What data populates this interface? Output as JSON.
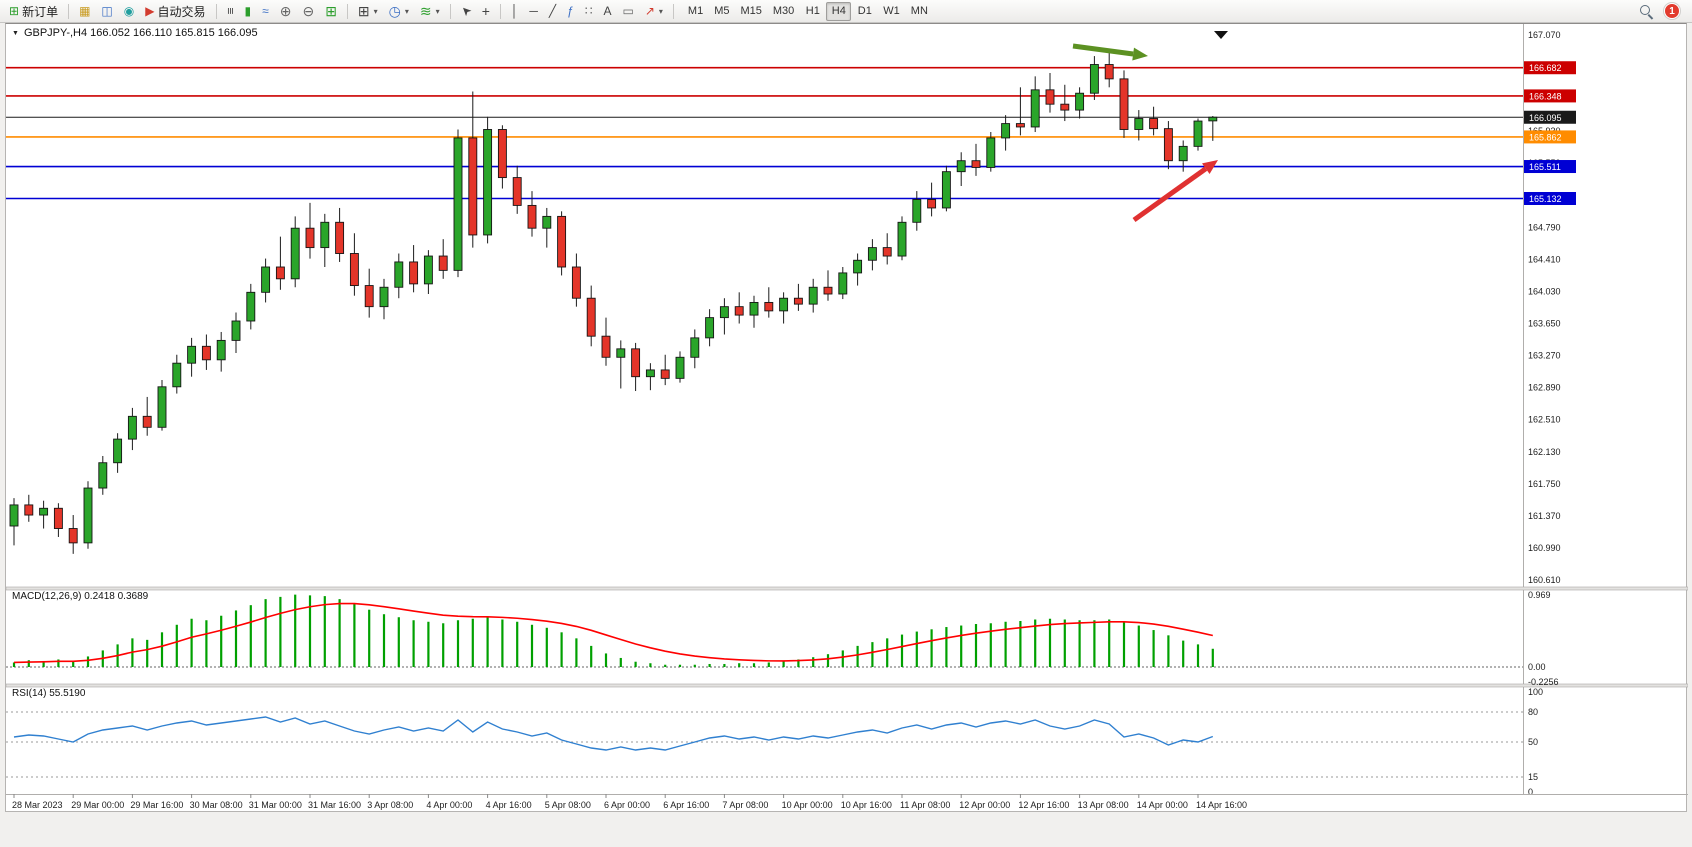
{
  "toolbar": {
    "new_order_label": "新订单",
    "auto_trading_label": "自动交易",
    "timeframes": [
      "M1",
      "M5",
      "M15",
      "M30",
      "H1",
      "H4",
      "D1",
      "W1",
      "MN"
    ],
    "active_timeframe": "H4",
    "notification_count": "1",
    "icons": {
      "new_order": "⊞",
      "market_watch": "▦",
      "data_window": "◫",
      "navigator": "◉",
      "auto_trading": "▶",
      "bar_chart": "≡",
      "candlestick_chart": "▮",
      "line_chart": "≈",
      "zoom_in": "⊕",
      "zoom_out": "⊖",
      "tile_windows": "⊞",
      "new_chart": "⊞",
      "periods": "◷",
      "indicators": "≋",
      "cursor": "➤",
      "crosshair": "+",
      "vertical_line": "│",
      "horizontal_line": "─",
      "trendline": "╱",
      "fibonacci": "ƒ",
      "channel": "∷",
      "text": "A",
      "text_label": "▭",
      "arrows": "↗",
      "dropdown": "▾",
      "chart_dropdown": "▼"
    }
  },
  "chart": {
    "title": "GBPJPY-,H4 166.052 166.110 165.815 166.095"
  },
  "chart_data": {
    "type": "candlestick",
    "symbol": "GBPJPY-",
    "timeframe": "H4",
    "ohlc_header": {
      "open": "166.052",
      "high": "166.110",
      "low": "165.815",
      "close": "166.095"
    },
    "y_axis_ticks": [
      "167.070",
      "166.690",
      "166.310",
      "165.930",
      "165.550",
      "165.170",
      "164.790",
      "164.410",
      "164.030",
      "163.650",
      "163.270",
      "162.890",
      "162.510",
      "162.130",
      "161.750",
      "161.370",
      "160.990",
      "160.610"
    ],
    "price_lines": [
      {
        "price": 166.682,
        "label": "166.682",
        "color": "#cc0000",
        "width": 1.6
      },
      {
        "price": 166.348,
        "label": "166.348",
        "color": "#cc0000",
        "width": 1.6
      },
      {
        "price": 166.095,
        "label": "166.095",
        "color": "#1a1a1a",
        "width": 1
      },
      {
        "price": 165.862,
        "label": "165.862",
        "color": "#ff8c00",
        "width": 1.6
      },
      {
        "price": 165.511,
        "label": "165.511",
        "color": "#0000d4",
        "width": 1.6
      },
      {
        "price": 165.132,
        "label": "165.132",
        "color": "#0000d4",
        "width": 1.6
      }
    ],
    "candles": [
      [
        161.25,
        161.58,
        161.02,
        161.5
      ],
      [
        161.5,
        161.62,
        161.3,
        161.38
      ],
      [
        161.38,
        161.55,
        161.22,
        161.46
      ],
      [
        161.46,
        161.52,
        161.12,
        161.22
      ],
      [
        161.22,
        161.38,
        160.92,
        161.05
      ],
      [
        161.05,
        161.78,
        160.98,
        161.7
      ],
      [
        161.7,
        162.08,
        161.62,
        162.0
      ],
      [
        162.0,
        162.35,
        161.88,
        162.28
      ],
      [
        162.28,
        162.65,
        162.15,
        162.55
      ],
      [
        162.55,
        162.78,
        162.32,
        162.42
      ],
      [
        162.42,
        162.98,
        162.38,
        162.9
      ],
      [
        162.9,
        163.28,
        162.82,
        163.18
      ],
      [
        163.18,
        163.48,
        163.02,
        163.38
      ],
      [
        163.38,
        163.52,
        163.1,
        163.22
      ],
      [
        163.22,
        163.55,
        163.08,
        163.45
      ],
      [
        163.45,
        163.78,
        163.3,
        163.68
      ],
      [
        163.68,
        164.12,
        163.58,
        164.02
      ],
      [
        164.02,
        164.42,
        163.9,
        164.32
      ],
      [
        164.32,
        164.68,
        164.05,
        164.18
      ],
      [
        164.18,
        164.92,
        164.08,
        164.78
      ],
      [
        164.78,
        165.08,
        164.42,
        164.55
      ],
      [
        164.55,
        164.95,
        164.32,
        164.85
      ],
      [
        164.85,
        165.02,
        164.38,
        164.48
      ],
      [
        164.48,
        164.72,
        163.98,
        164.1
      ],
      [
        164.1,
        164.3,
        163.72,
        163.85
      ],
      [
        163.85,
        164.18,
        163.7,
        164.08
      ],
      [
        164.08,
        164.48,
        163.95,
        164.38
      ],
      [
        164.38,
        164.58,
        164.02,
        164.12
      ],
      [
        164.12,
        164.52,
        164.0,
        164.45
      ],
      [
        164.45,
        164.65,
        164.18,
        164.28
      ],
      [
        164.28,
        165.95,
        164.2,
        165.85
      ],
      [
        165.85,
        166.4,
        164.55,
        164.7
      ],
      [
        164.7,
        166.1,
        164.6,
        165.95
      ],
      [
        165.95,
        166.0,
        165.25,
        165.38
      ],
      [
        165.38,
        165.52,
        164.95,
        165.05
      ],
      [
        165.05,
        165.22,
        164.68,
        164.78
      ],
      [
        164.78,
        165.02,
        164.55,
        164.92
      ],
      [
        164.92,
        164.98,
        164.22,
        164.32
      ],
      [
        164.32,
        164.48,
        163.85,
        163.95
      ],
      [
        163.95,
        164.1,
        163.38,
        163.5
      ],
      [
        163.5,
        163.72,
        163.15,
        163.25
      ],
      [
        163.25,
        163.45,
        162.88,
        163.35
      ],
      [
        163.35,
        163.42,
        162.85,
        163.02
      ],
      [
        163.02,
        163.18,
        162.86,
        163.1
      ],
      [
        163.1,
        163.28,
        162.92,
        163.0
      ],
      [
        163.0,
        163.32,
        162.95,
        163.25
      ],
      [
        163.25,
        163.58,
        163.12,
        163.48
      ],
      [
        163.48,
        163.82,
        163.38,
        163.72
      ],
      [
        163.72,
        163.95,
        163.52,
        163.85
      ],
      [
        163.85,
        164.02,
        163.65,
        163.75
      ],
      [
        163.75,
        163.98,
        163.6,
        163.9
      ],
      [
        163.9,
        164.08,
        163.72,
        163.8
      ],
      [
        163.8,
        164.02,
        163.65,
        163.95
      ],
      [
        163.95,
        164.12,
        163.8,
        163.88
      ],
      [
        163.88,
        164.18,
        163.78,
        164.08
      ],
      [
        164.08,
        164.28,
        163.92,
        164.0
      ],
      [
        164.0,
        164.32,
        163.94,
        164.25
      ],
      [
        164.25,
        164.48,
        164.1,
        164.4
      ],
      [
        164.4,
        164.65,
        164.28,
        164.55
      ],
      [
        164.55,
        164.72,
        164.35,
        164.45
      ],
      [
        164.45,
        164.92,
        164.4,
        164.85
      ],
      [
        164.85,
        165.22,
        164.75,
        165.12
      ],
      [
        165.12,
        165.32,
        164.92,
        165.02
      ],
      [
        165.02,
        165.52,
        164.98,
        165.45
      ],
      [
        165.45,
        165.68,
        165.28,
        165.58
      ],
      [
        165.58,
        165.78,
        165.4,
        165.5
      ],
      [
        165.5,
        165.92,
        165.45,
        165.85
      ],
      [
        165.85,
        166.12,
        165.7,
        166.02
      ],
      [
        166.02,
        166.45,
        165.88,
        165.98
      ],
      [
        165.98,
        166.58,
        165.92,
        166.42
      ],
      [
        166.42,
        166.62,
        166.15,
        166.25
      ],
      [
        166.25,
        166.48,
        166.05,
        166.18
      ],
      [
        166.18,
        166.45,
        166.08,
        166.38
      ],
      [
        166.38,
        166.82,
        166.3,
        166.72
      ],
      [
        166.72,
        166.86,
        166.45,
        166.55
      ],
      [
        166.55,
        166.65,
        165.85,
        165.95
      ],
      [
        165.95,
        166.18,
        165.82,
        166.08
      ],
      [
        166.08,
        166.22,
        165.88,
        165.96
      ],
      [
        165.96,
        166.05,
        165.48,
        165.58
      ],
      [
        165.58,
        165.82,
        165.45,
        165.75
      ],
      [
        165.75,
        166.08,
        165.7,
        166.05
      ],
      [
        166.052,
        166.11,
        165.815,
        166.095
      ]
    ],
    "time_labels": [
      "28 Mar 2023",
      "29 Mar 00:00",
      "29 Mar 16:00",
      "30 Mar 08:00",
      "31 Mar 00:00",
      "31 Mar 16:00",
      "3 Apr 08:00",
      "4 Apr 00:00",
      "4 Apr 16:00",
      "5 Apr 08:00",
      "6 Apr 00:00",
      "6 Apr 16:00",
      "7 Apr 08:00",
      "10 Apr 00:00",
      "10 Apr 16:00",
      "11 Apr 08:00",
      "12 Apr 00:00",
      "12 Apr 16:00",
      "13 Apr 08:00",
      "14 Apr 00:00",
      "14 Apr 16:00"
    ],
    "macd": {
      "label": "MACD(12,26,9) 0.2418 0.3689",
      "scale_ticks": [
        "0.969",
        "0.00",
        "-0.2256"
      ],
      "values": [
        0.06,
        0.09,
        0.08,
        0.1,
        0.08,
        0.14,
        0.22,
        0.3,
        0.38,
        0.36,
        0.46,
        0.56,
        0.64,
        0.62,
        0.68,
        0.75,
        0.82,
        0.9,
        0.93,
        0.96,
        0.95,
        0.94,
        0.9,
        0.84,
        0.76,
        0.7,
        0.66,
        0.62,
        0.6,
        0.58,
        0.62,
        0.64,
        0.66,
        0.63,
        0.6,
        0.56,
        0.52,
        0.46,
        0.38,
        0.28,
        0.18,
        0.12,
        0.07,
        0.05,
        0.03,
        0.03,
        0.03,
        0.04,
        0.04,
        0.05,
        0.05,
        0.06,
        0.08,
        0.1,
        0.13,
        0.17,
        0.22,
        0.28,
        0.33,
        0.38,
        0.43,
        0.47,
        0.5,
        0.53,
        0.55,
        0.57,
        0.58,
        0.6,
        0.61,
        0.63,
        0.64,
        0.63,
        0.62,
        0.62,
        0.63,
        0.6,
        0.55,
        0.49,
        0.42,
        0.35,
        0.3,
        0.2418
      ]
    },
    "rsi": {
      "label": "RSI(14) 55.5190",
      "scale_ticks": [
        "100",
        "80",
        "50",
        "15",
        "0"
      ],
      "levels": [
        80,
        50,
        15
      ],
      "values": [
        55,
        57,
        56,
        53,
        50,
        58,
        62,
        64,
        66,
        62,
        66,
        69,
        71,
        67,
        69,
        71,
        73,
        75,
        70,
        74,
        68,
        71,
        66,
        61,
        58,
        62,
        65,
        61,
        64,
        61,
        72,
        60,
        70,
        63,
        60,
        56,
        59,
        52,
        48,
        44,
        42,
        45,
        42,
        44,
        42,
        46,
        50,
        54,
        56,
        53,
        55,
        52,
        55,
        53,
        56,
        54,
        57,
        60,
        62,
        59,
        64,
        67,
        63,
        67,
        69,
        65,
        69,
        71,
        68,
        72,
        66,
        63,
        66,
        72,
        68,
        55,
        58,
        54,
        47,
        52,
        50,
        55.52
      ]
    },
    "colors": {
      "up": "#2aa52a",
      "down": "#e43529",
      "macd_histogram": "#00a000",
      "macd_signal": "#ff0000",
      "rsi_line": "#3080d0",
      "bid_line": "#1a1a1a"
    },
    "arrows": [
      {
        "name": "trend-arrow-green",
        "color": "#5c9122",
        "from": [
          1067,
          22
        ],
        "to": [
          1142,
          32
        ]
      },
      {
        "name": "trend-arrow-red",
        "color": "#e03131",
        "from": [
          1128,
          196
        ],
        "to": [
          1212,
          136
        ]
      }
    ]
  }
}
